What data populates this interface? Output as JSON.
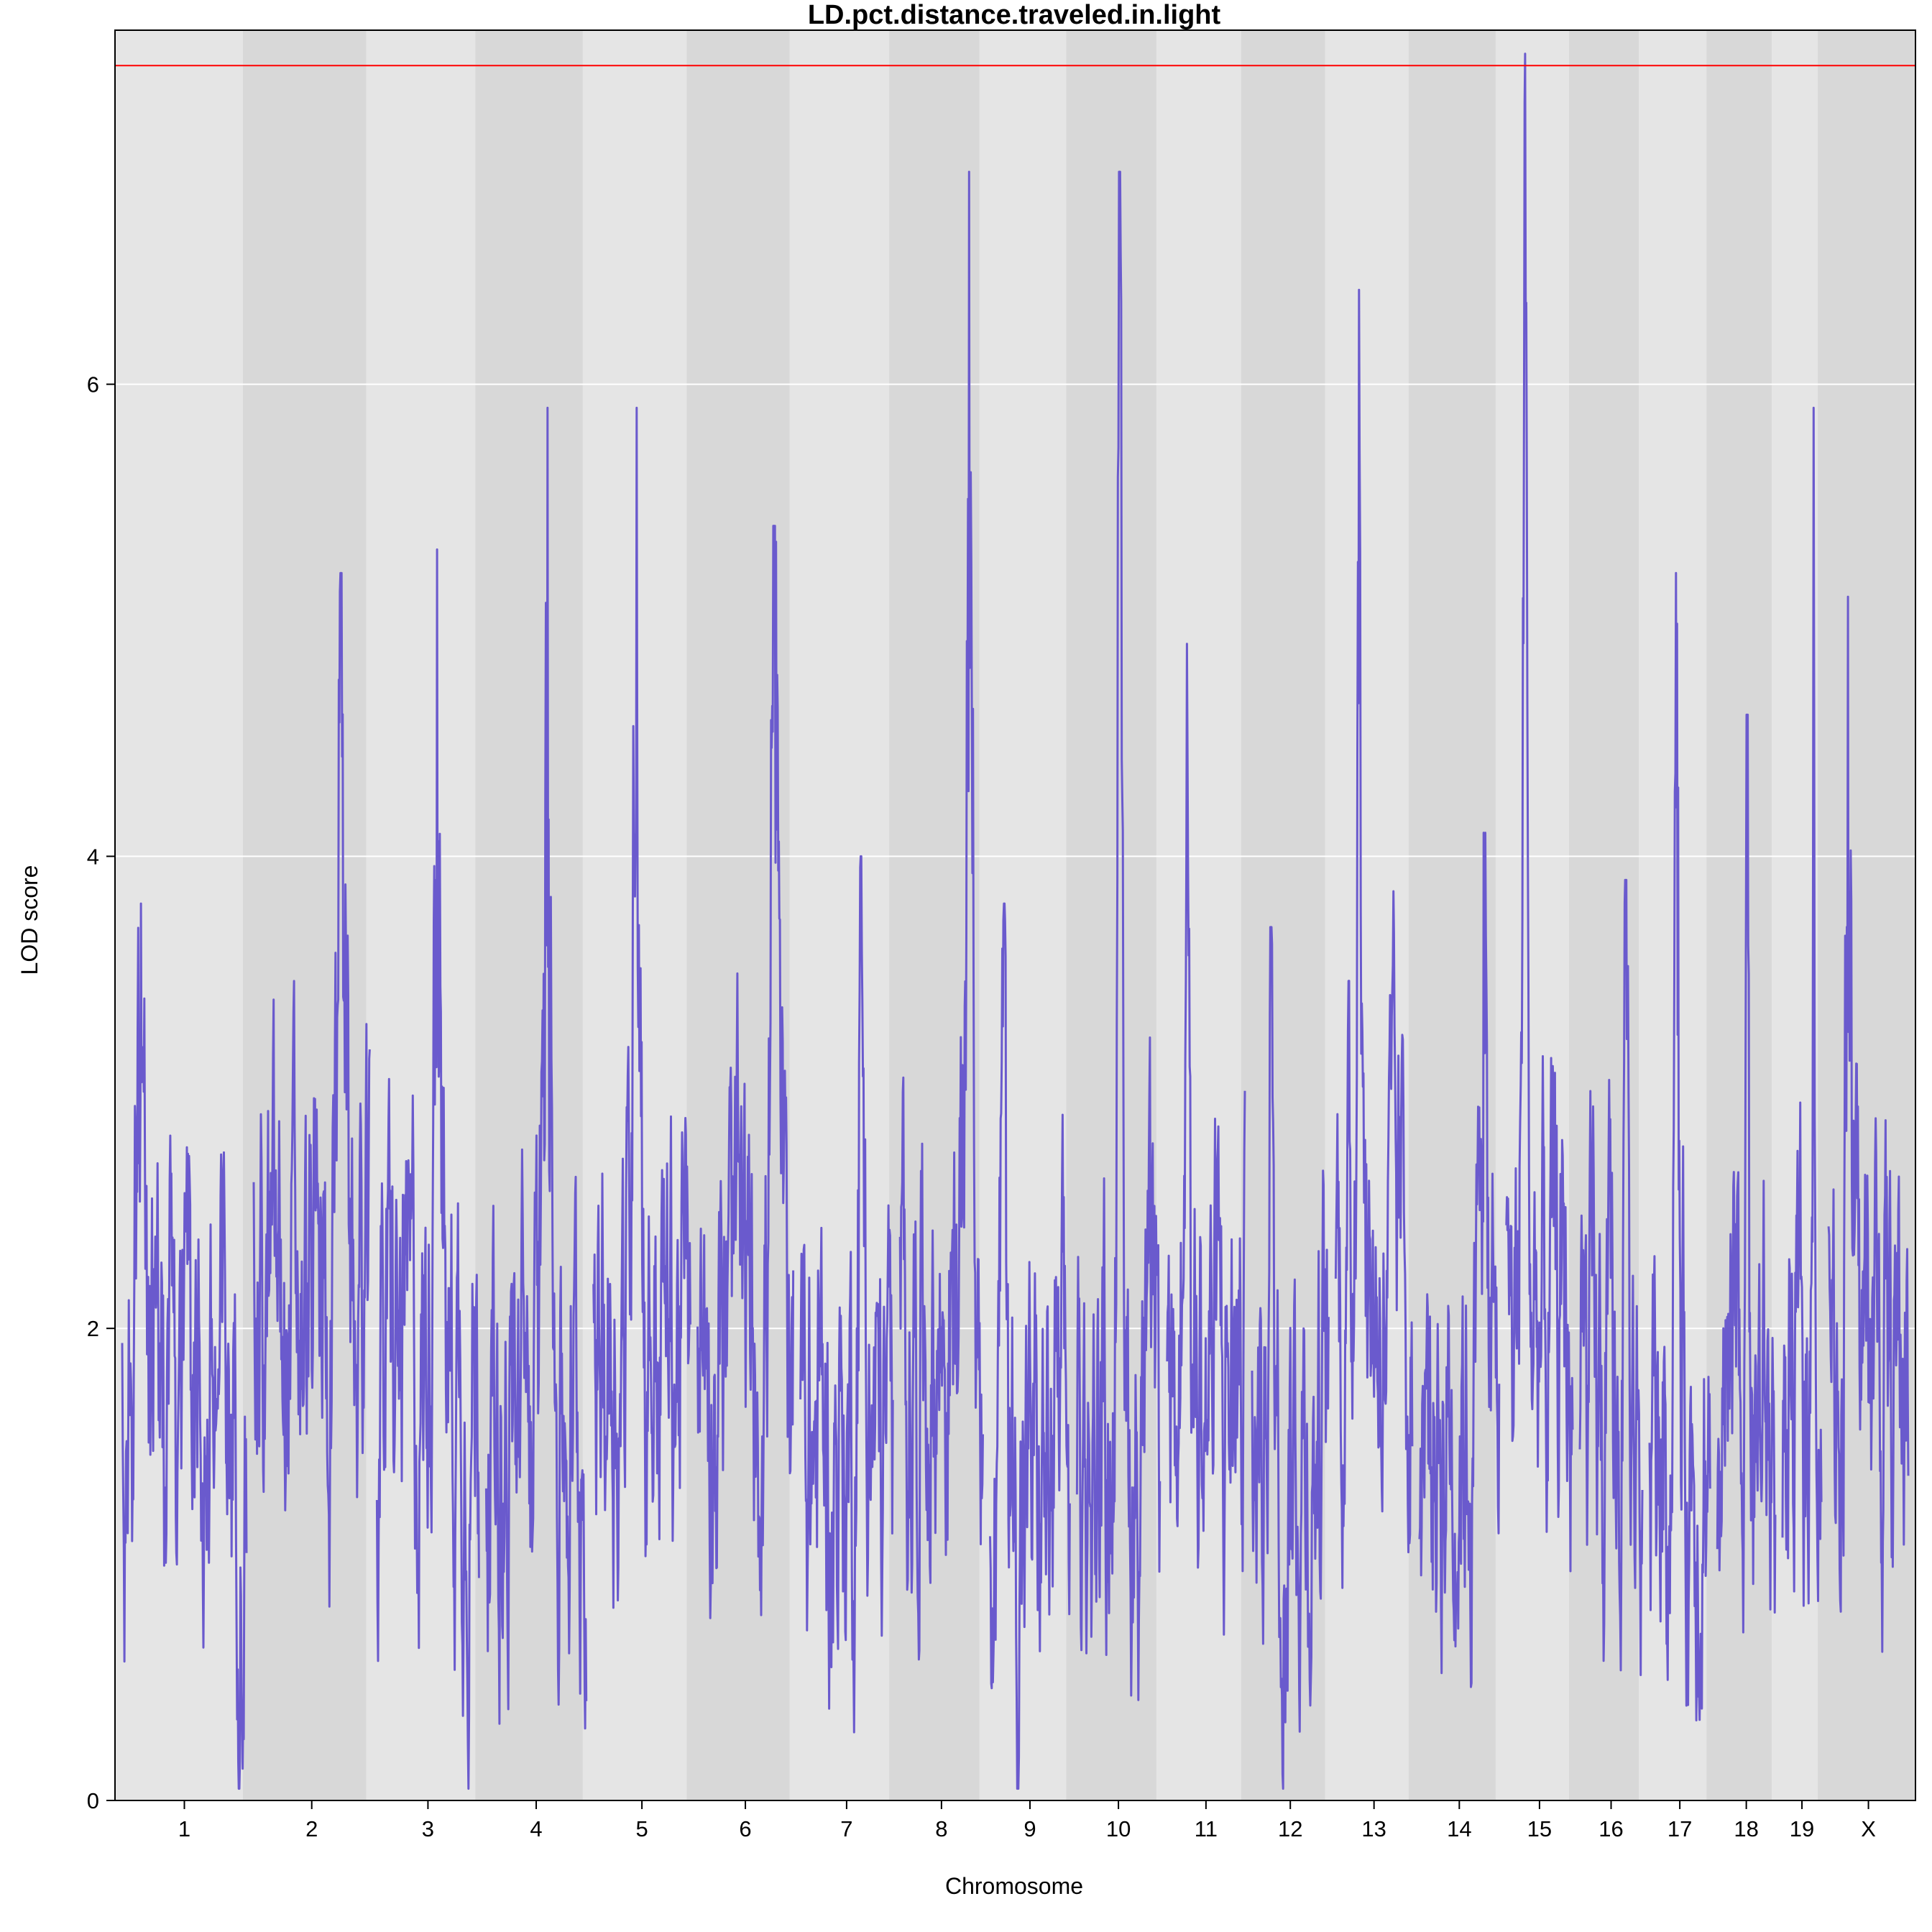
{
  "chart_data": {
    "type": "line",
    "title": "LD.pct.distance.traveled.in.light",
    "xlabel": "Chromosome",
    "ylabel": "LOD score",
    "ylim": [
      0,
      7.5
    ],
    "yticks": [
      0,
      2,
      4,
      6
    ],
    "grid": true,
    "threshold": {
      "value": 7.35,
      "color": "#ff0000"
    },
    "colors": {
      "line": "#6a5acd",
      "band_light": "#e5e5e5",
      "band_dark": "#d8d8d8",
      "grid": "#ffffff"
    },
    "chromosomes": [
      {
        "label": "1",
        "length": 195,
        "peak": 3.8,
        "base": 1.6
      },
      {
        "label": "2",
        "length": 182,
        "peak": 5.2,
        "base": 2.0
      },
      {
        "label": "3",
        "length": 160,
        "peak": 5.3,
        "base": 1.8
      },
      {
        "label": "4",
        "length": 157,
        "peak": 5.9,
        "base": 1.6
      },
      {
        "label": "5",
        "length": 152,
        "peak": 5.9,
        "base": 2.0
      },
      {
        "label": "6",
        "length": 150,
        "peak": 5.4,
        "base": 2.0
      },
      {
        "label": "7",
        "length": 145,
        "peak": 4.0,
        "base": 1.5
      },
      {
        "label": "8",
        "length": 130,
        "peak": 6.9,
        "base": 2.0
      },
      {
        "label": "9",
        "length": 125,
        "peak": 3.8,
        "base": 1.3
      },
      {
        "label": "10",
        "length": 130,
        "peak": 6.9,
        "base": 1.5
      },
      {
        "label": "11",
        "length": 122,
        "peak": 4.9,
        "base": 1.8
      },
      {
        "label": "12",
        "length": 120,
        "peak": 3.7,
        "base": 1.6
      },
      {
        "label": "13",
        "length": 120,
        "peak": 6.4,
        "base": 2.2
      },
      {
        "label": "14",
        "length": 125,
        "peak": 4.1,
        "base": 1.7
      },
      {
        "label": "15",
        "length": 104,
        "peak": 7.4,
        "base": 2.0
      },
      {
        "label": "16",
        "length": 98,
        "peak": 3.9,
        "base": 1.5
      },
      {
        "label": "17",
        "length": 95,
        "peak": 5.2,
        "base": 1.6
      },
      {
        "label": "18",
        "length": 91,
        "peak": 4.6,
        "base": 1.5
      },
      {
        "label": "19",
        "length": 61,
        "peak": 5.9,
        "base": 1.6
      },
      {
        "label": "X",
        "length": 125,
        "peak": 5.1,
        "base": 1.9
      }
    ]
  }
}
